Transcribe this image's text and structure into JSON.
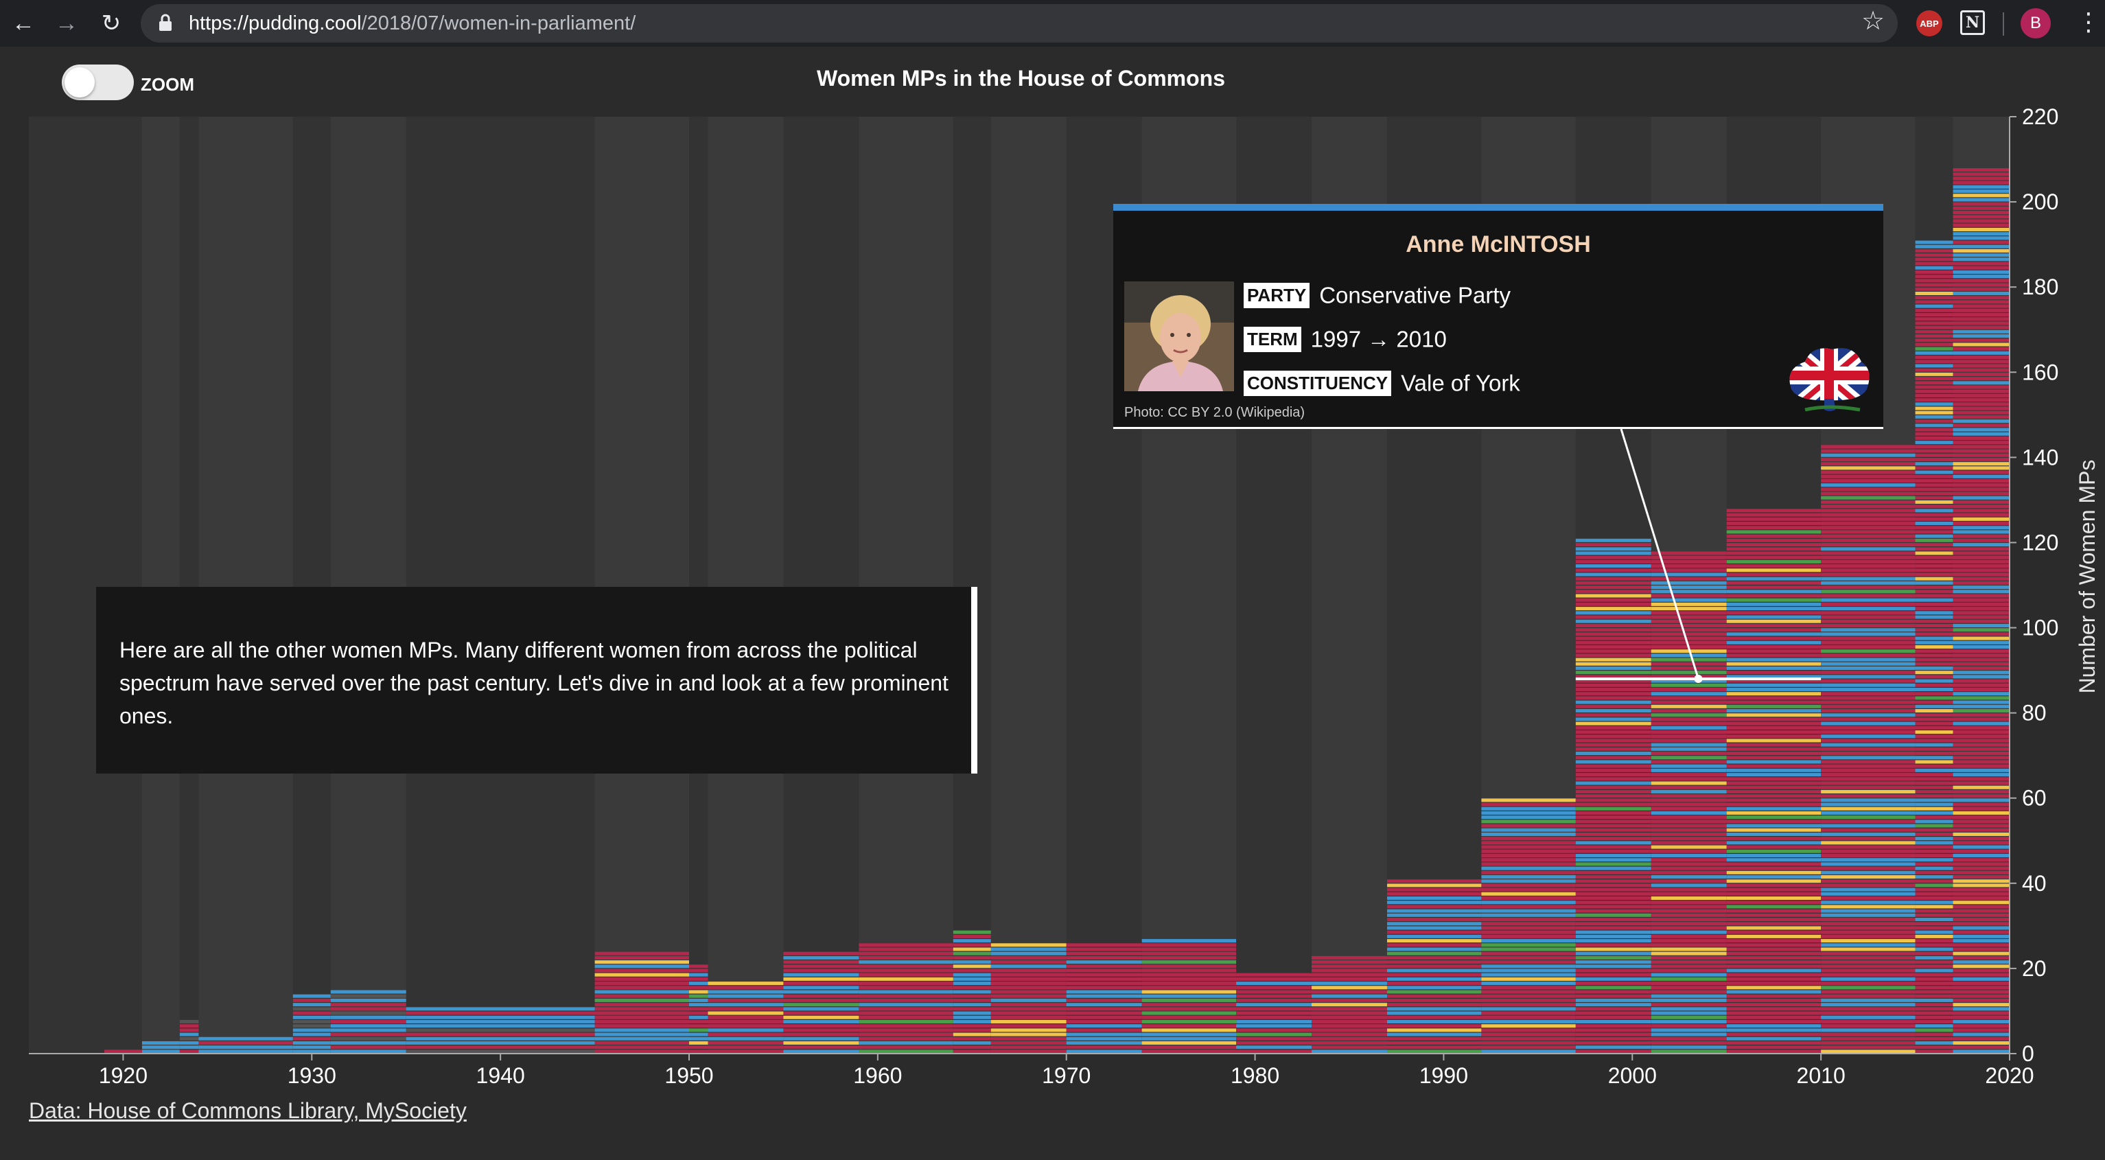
{
  "browser": {
    "url_host": "https://pudding.cool",
    "url_path": "/2018/07/women-in-parliament/",
    "extensions": {
      "adblock": "ABP",
      "notion": "N"
    },
    "profile_initial": "B"
  },
  "page": {
    "zoom_label": "ZOOM",
    "zoom_enabled": false,
    "title": "Women MPs in the House of Commons",
    "narration": "Here are all the other women MPs. Many different women from across the political spectrum have served over the past century. Let's dive in and look at a few prominent ones.",
    "data_source": "Data: House of Commons Library, MySociety"
  },
  "tooltip": {
    "name": "Anne McINTOSH",
    "party_key": "PARTY",
    "party": "Conservative Party",
    "term_key": "TERM",
    "term": "1997 → 2010",
    "constituency_key": "CONSTITUENCY",
    "constituency": "Vale of York",
    "photo_credit": "Photo: CC BY 2.0 (Wikipedia)",
    "accent_color": "#3b8bd1"
  },
  "chart_data": {
    "type": "area",
    "title": "Women MPs in the House of Commons",
    "xlabel": "",
    "ylabel": "Number of Women MPs",
    "xlim": [
      1915,
      2020
    ],
    "ylim": [
      0,
      220
    ],
    "x_ticks": [
      "1920",
      "1930",
      "1940",
      "1950",
      "1960",
      "1970",
      "1980",
      "1990",
      "2000",
      "2010",
      "2020"
    ],
    "y_ticks": [
      "0",
      "20",
      "40",
      "60",
      "80",
      "100",
      "120",
      "140",
      "160",
      "180",
      "200",
      "220"
    ],
    "colors": {
      "labour": "#b5284b",
      "conservative": "#3e97d1",
      "libdem": "#f2c44a",
      "other": "#4aa04a",
      "background": "#333333"
    },
    "series": [
      {
        "name": "Women MPs",
        "x": [
          1919,
          1921,
          1923,
          1924,
          1929,
          1931,
          1935,
          1945,
          1950,
          1951,
          1955,
          1959,
          1964,
          1966,
          1970,
          1974,
          1979,
          1983,
          1987,
          1992,
          1997,
          2001,
          2005,
          2010,
          2015,
          2017
        ],
        "values": [
          1,
          3,
          8,
          4,
          14,
          15,
          11,
          24,
          21,
          17,
          24,
          26,
          29,
          26,
          26,
          27,
          19,
          23,
          41,
          60,
          121,
          118,
          128,
          143,
          191,
          208
        ]
      }
    ],
    "highlight": {
      "start_year": 1997,
      "end_year": 2010,
      "value": 88
    },
    "legend": "none",
    "grid": false
  }
}
